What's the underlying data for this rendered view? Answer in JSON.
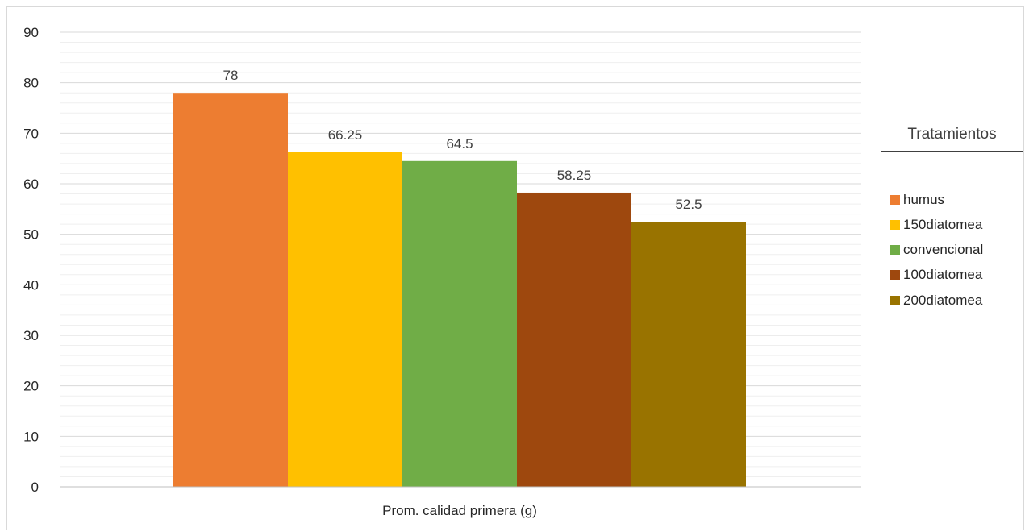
{
  "chart_data": {
    "type": "bar",
    "categories": [
      "Prom. calidad primera (g)"
    ],
    "series": [
      {
        "name": "humus",
        "values": [
          78
        ],
        "color": "#ed7d31",
        "label": "78"
      },
      {
        "name": "150diatomea",
        "values": [
          66.25
        ],
        "color": "#ffc000",
        "label": "66.25"
      },
      {
        "name": "convencional",
        "values": [
          64.5
        ],
        "color": "#70ad47",
        "label": "64.5"
      },
      {
        "name": "100diatomea",
        "values": [
          58.25
        ],
        "color": "#9e480e",
        "label": "58.25"
      },
      {
        "name": "200diatomea",
        "values": [
          52.5
        ],
        "color": "#997300",
        "label": "52.5"
      }
    ],
    "title": "",
    "xlabel": "",
    "ylabel": "",
    "ylim": [
      0,
      90
    ],
    "y_ticks": [
      {
        "value": 0,
        "label": "0"
      },
      {
        "value": 10,
        "label": "10"
      },
      {
        "value": 20,
        "label": "20"
      },
      {
        "value": 30,
        "label": "30"
      },
      {
        "value": 40,
        "label": "40"
      },
      {
        "value": 50,
        "label": "50"
      },
      {
        "value": 60,
        "label": "60"
      },
      {
        "value": 70,
        "label": "70"
      },
      {
        "value": 80,
        "label": "80"
      },
      {
        "value": 90,
        "label": "90"
      }
    ],
    "grid": true,
    "minor_grid": true,
    "legend": {
      "title": "Tratamientos",
      "position": "right"
    }
  }
}
